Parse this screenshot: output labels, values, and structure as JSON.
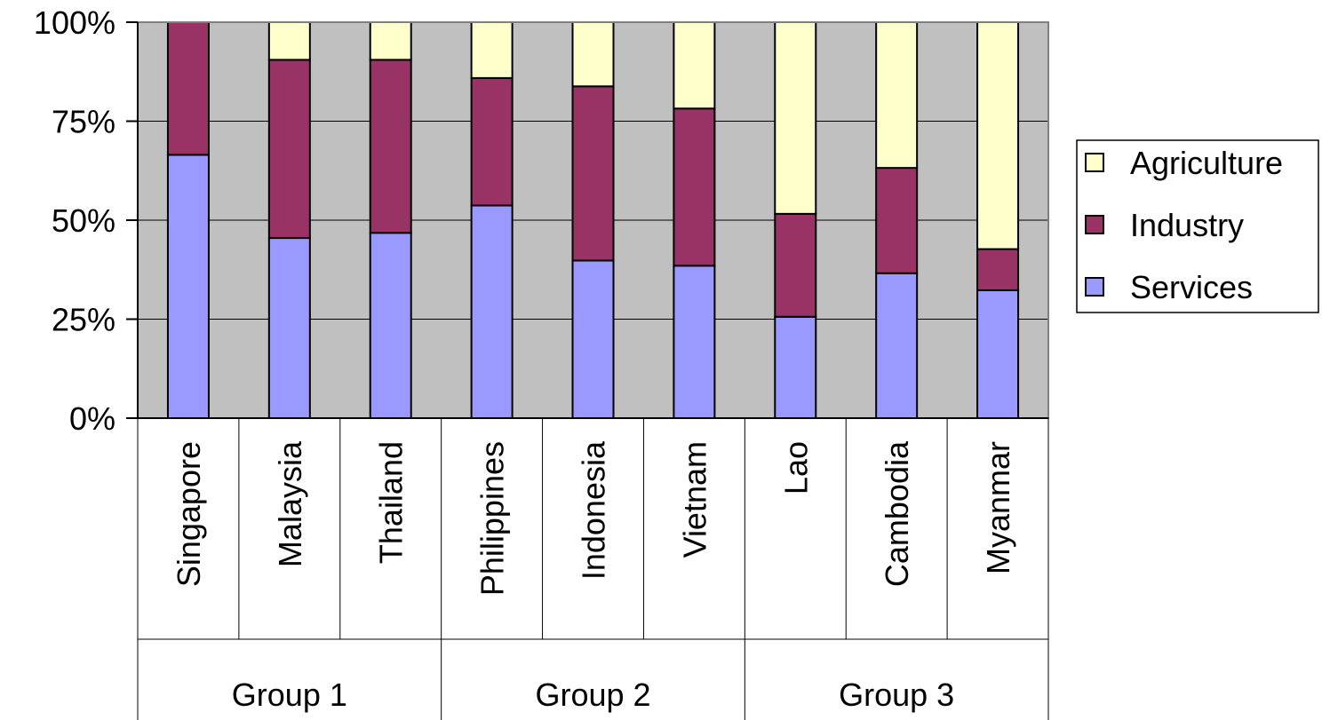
{
  "chart_data": {
    "type": "bar",
    "stacked": true,
    "percent": true,
    "categories": [
      "Singapore",
      "Malaysia",
      "Thailand",
      "Philippines",
      "Indonesia",
      "Vietnam",
      "Lao",
      "Cambodia",
      "Myanmar"
    ],
    "groups": [
      {
        "label": "Group 1",
        "categories": [
          "Singapore",
          "Malaysia",
          "Thailand"
        ]
      },
      {
        "label": "Group 2",
        "categories": [
          "Philippines",
          "Indonesia",
          "Vietnam"
        ]
      },
      {
        "label": "Group 3",
        "categories": [
          "Lao",
          "Cambodia",
          "Myanmar"
        ]
      }
    ],
    "series": [
      {
        "name": "Services",
        "color": "#9999ff",
        "values": [
          66.5,
          45.5,
          46.8,
          53.7,
          39.8,
          38.5,
          25.6,
          36.6,
          32.3
        ]
      },
      {
        "name": "Industry",
        "color": "#993366",
        "values": [
          33.5,
          45.0,
          43.7,
          32.2,
          44.0,
          39.7,
          26.0,
          26.6,
          10.4
        ]
      },
      {
        "name": "Agriculture",
        "color": "#ffffcc",
        "values": [
          0.0,
          9.5,
          9.5,
          14.1,
          16.2,
          21.8,
          48.4,
          36.8,
          57.3
        ]
      }
    ],
    "yticks": [
      "0%",
      "25%",
      "50%",
      "75%",
      "100%"
    ],
    "ylim": [
      0,
      100
    ],
    "plot_background": "#c0c0c0",
    "grid": true,
    "legend": {
      "position": "right",
      "entries": [
        "Agriculture",
        "Industry",
        "Services"
      ]
    }
  }
}
